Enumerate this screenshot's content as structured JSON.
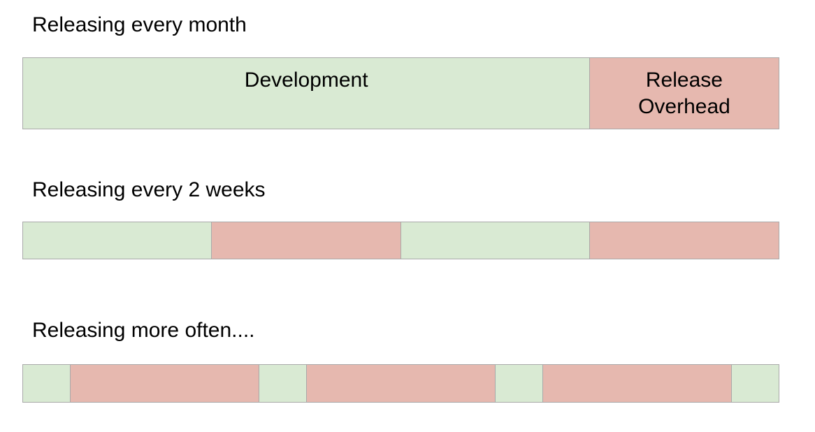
{
  "colors": {
    "development": "#d9ead3",
    "release_overhead": "#e6b8af",
    "border": "#a9a9a9"
  },
  "rows": [
    {
      "title": "Releasing every month",
      "segments": [
        {
          "kind": "development",
          "weight": 3,
          "label": "Development"
        },
        {
          "kind": "release_overhead",
          "weight": 1,
          "label": "Release\nOverhead"
        }
      ]
    },
    {
      "title": "Releasing every 2 weeks",
      "segments": [
        {
          "kind": "development",
          "weight": 1,
          "label": ""
        },
        {
          "kind": "release_overhead",
          "weight": 1,
          "label": ""
        },
        {
          "kind": "development",
          "weight": 1,
          "label": ""
        },
        {
          "kind": "release_overhead",
          "weight": 1,
          "label": ""
        }
      ]
    },
    {
      "title": "Releasing more often....",
      "segments": [
        {
          "kind": "development",
          "weight": 1,
          "label": ""
        },
        {
          "kind": "release_overhead",
          "weight": 4,
          "label": ""
        },
        {
          "kind": "development",
          "weight": 1,
          "label": ""
        },
        {
          "kind": "release_overhead",
          "weight": 4,
          "label": ""
        },
        {
          "kind": "development",
          "weight": 1,
          "label": ""
        },
        {
          "kind": "release_overhead",
          "weight": 4,
          "label": ""
        },
        {
          "kind": "development",
          "weight": 1,
          "label": ""
        }
      ]
    }
  ]
}
